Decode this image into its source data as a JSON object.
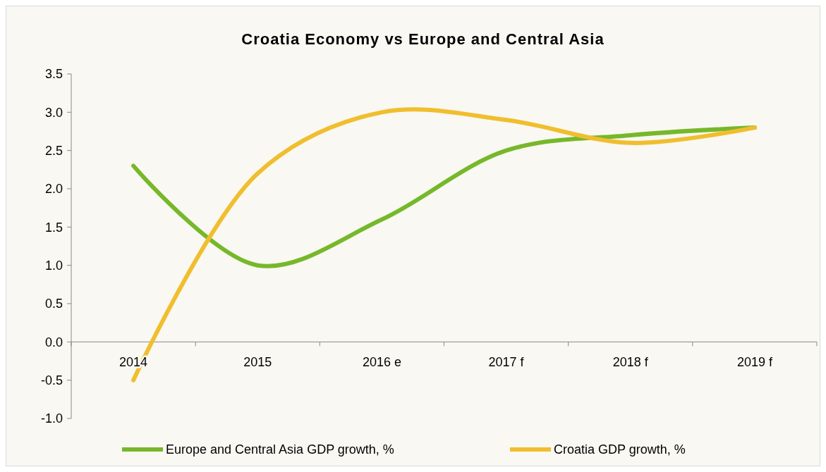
{
  "chart_data": {
    "type": "line",
    "title": "Croatia Economy vs Europe and Central Asia",
    "categories": [
      "2014",
      "2015",
      "2016 e",
      "2017 f",
      "2018 f",
      "2019 f"
    ],
    "series": [
      {
        "name": "Europe and Central Asia GDP growth, %",
        "color": "#76b82a",
        "values": [
          2.3,
          1.0,
          1.6,
          2.5,
          2.7,
          2.8
        ]
      },
      {
        "name": "Croatia GDP growth, %",
        "color": "#f0be2e",
        "values": [
          -0.5,
          2.2,
          3.0,
          2.9,
          2.6,
          2.8
        ]
      }
    ],
    "ylim": [
      -1.0,
      3.5
    ],
    "yticks": [
      {
        "value": -1,
        "label": "-1.0"
      },
      {
        "value": -0.5,
        "label": "-0.5"
      },
      {
        "value": 0,
        "label": "0.0"
      },
      {
        "value": 0.5,
        "label": "0.5"
      },
      {
        "value": 1,
        "label": "1.0"
      },
      {
        "value": 1.5,
        "label": "1.5"
      },
      {
        "value": 2,
        "label": "2.0"
      },
      {
        "value": 2.5,
        "label": "2.5"
      },
      {
        "value": 3,
        "label": "3.0"
      },
      {
        "value": 3.5,
        "label": "3.5"
      }
    ],
    "grid": false,
    "legend": "bottom",
    "marker": "none",
    "line_style": "solid"
  }
}
